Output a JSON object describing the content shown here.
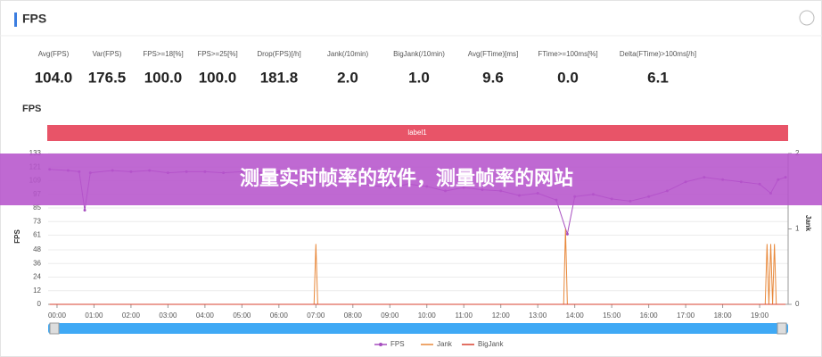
{
  "header": {
    "title": "FPS"
  },
  "stats": [
    {
      "label": "Avg(FPS)",
      "value": "104.0"
    },
    {
      "label": "Var(FPS)",
      "value": "176.5"
    },
    {
      "label": "FPS>=18[%]",
      "value": "100.0"
    },
    {
      "label": "FPS>=25[%]",
      "value": "100.0"
    },
    {
      "label": "Drop(FPS)[/h]",
      "value": "181.8"
    },
    {
      "label": "Jank(/10min)",
      "value": "2.0"
    },
    {
      "label": "BigJank(/10min)",
      "value": "1.0"
    },
    {
      "label": "Avg(FTime)[ms]",
      "value": "9.6"
    },
    {
      "label": "FTime>=100ms[%]",
      "value": "0.0"
    },
    {
      "label": "Delta(FTime)>100ms[/h]",
      "value": "6.1"
    }
  ],
  "banner": "测量实时帧率的软件，测量帧率的网站",
  "chart_data": {
    "type": "line",
    "title": "FPS",
    "band_label": "label1",
    "ylabel": "FPS",
    "y2label": "Jank",
    "xlim": [
      -0.24,
      19.77
    ],
    "xticks": [
      {
        "value": 0,
        "label": "00:00"
      },
      {
        "value": 1,
        "label": "01:00"
      },
      {
        "value": 2,
        "label": "02:00"
      },
      {
        "value": 3,
        "label": "03:00"
      },
      {
        "value": 4,
        "label": "04:00"
      },
      {
        "value": 5,
        "label": "05:00"
      },
      {
        "value": 6,
        "label": "06:00"
      },
      {
        "value": 7,
        "label": "07:00"
      },
      {
        "value": 8,
        "label": "08:00"
      },
      {
        "value": 9,
        "label": "09:00"
      },
      {
        "value": 10,
        "label": "10:00"
      },
      {
        "value": 11,
        "label": "11:00"
      },
      {
        "value": 12,
        "label": "12:00"
      },
      {
        "value": 13,
        "label": "13:00"
      },
      {
        "value": 14,
        "label": "14:00"
      },
      {
        "value": 15,
        "label": "15:00"
      },
      {
        "value": 16,
        "label": "16:00"
      },
      {
        "value": 17,
        "label": "17:00"
      },
      {
        "value": 18,
        "label": "18:00"
      },
      {
        "value": 19,
        "label": "19:00"
      }
    ],
    "ylim": [
      0,
      133
    ],
    "yticks": [
      0,
      12,
      24,
      36,
      48,
      61,
      73,
      85,
      97,
      109,
      121,
      133
    ],
    "y2lim": [
      0,
      2
    ],
    "y2ticks": [
      0,
      1,
      2
    ],
    "series": [
      {
        "name": "FPS",
        "color": "#a64dbf",
        "axis": "y",
        "x": [
          -0.2,
          0.3,
          0.6,
          0.75,
          0.9,
          1.5,
          2,
          2.5,
          3,
          3.5,
          4,
          4.5,
          5,
          5.5,
          6,
          6.5,
          7,
          7.5,
          8,
          8.5,
          9,
          9.5,
          10,
          10.5,
          11,
          11.5,
          12,
          12.5,
          13,
          13.5,
          13.8,
          14,
          14.5,
          15,
          15.5,
          16,
          16.5,
          17,
          17.5,
          18,
          18.5,
          19,
          19.3,
          19.5,
          19.7
        ],
        "values": [
          119,
          118,
          117,
          83,
          116,
          118,
          117,
          118,
          116,
          117,
          117,
          116,
          117,
          116,
          117,
          116,
          115,
          110,
          108,
          105,
          103,
          106,
          104,
          100,
          103,
          101,
          100,
          96,
          98,
          92,
          62,
          95,
          97,
          93,
          91,
          95,
          100,
          108,
          112,
          110,
          108,
          106,
          98,
          110,
          112
        ]
      },
      {
        "name": "Jank",
        "color": "#e8883a",
        "axis": "y2",
        "x": [
          -0.2,
          6.95,
          7,
          7.05,
          13.7,
          13.75,
          13.8,
          19.15,
          19.2,
          19.25,
          19.3,
          19.35,
          19.4,
          19.45,
          19.7
        ],
        "values": [
          0,
          0,
          0.8,
          0,
          0,
          1,
          0,
          0,
          0.8,
          0,
          0.8,
          0,
          0.8,
          0,
          0
        ]
      },
      {
        "name": "BigJank",
        "color": "#d9412f",
        "axis": "y2",
        "x": [
          -0.2,
          19.7
        ],
        "values": [
          0,
          0
        ]
      }
    ]
  }
}
